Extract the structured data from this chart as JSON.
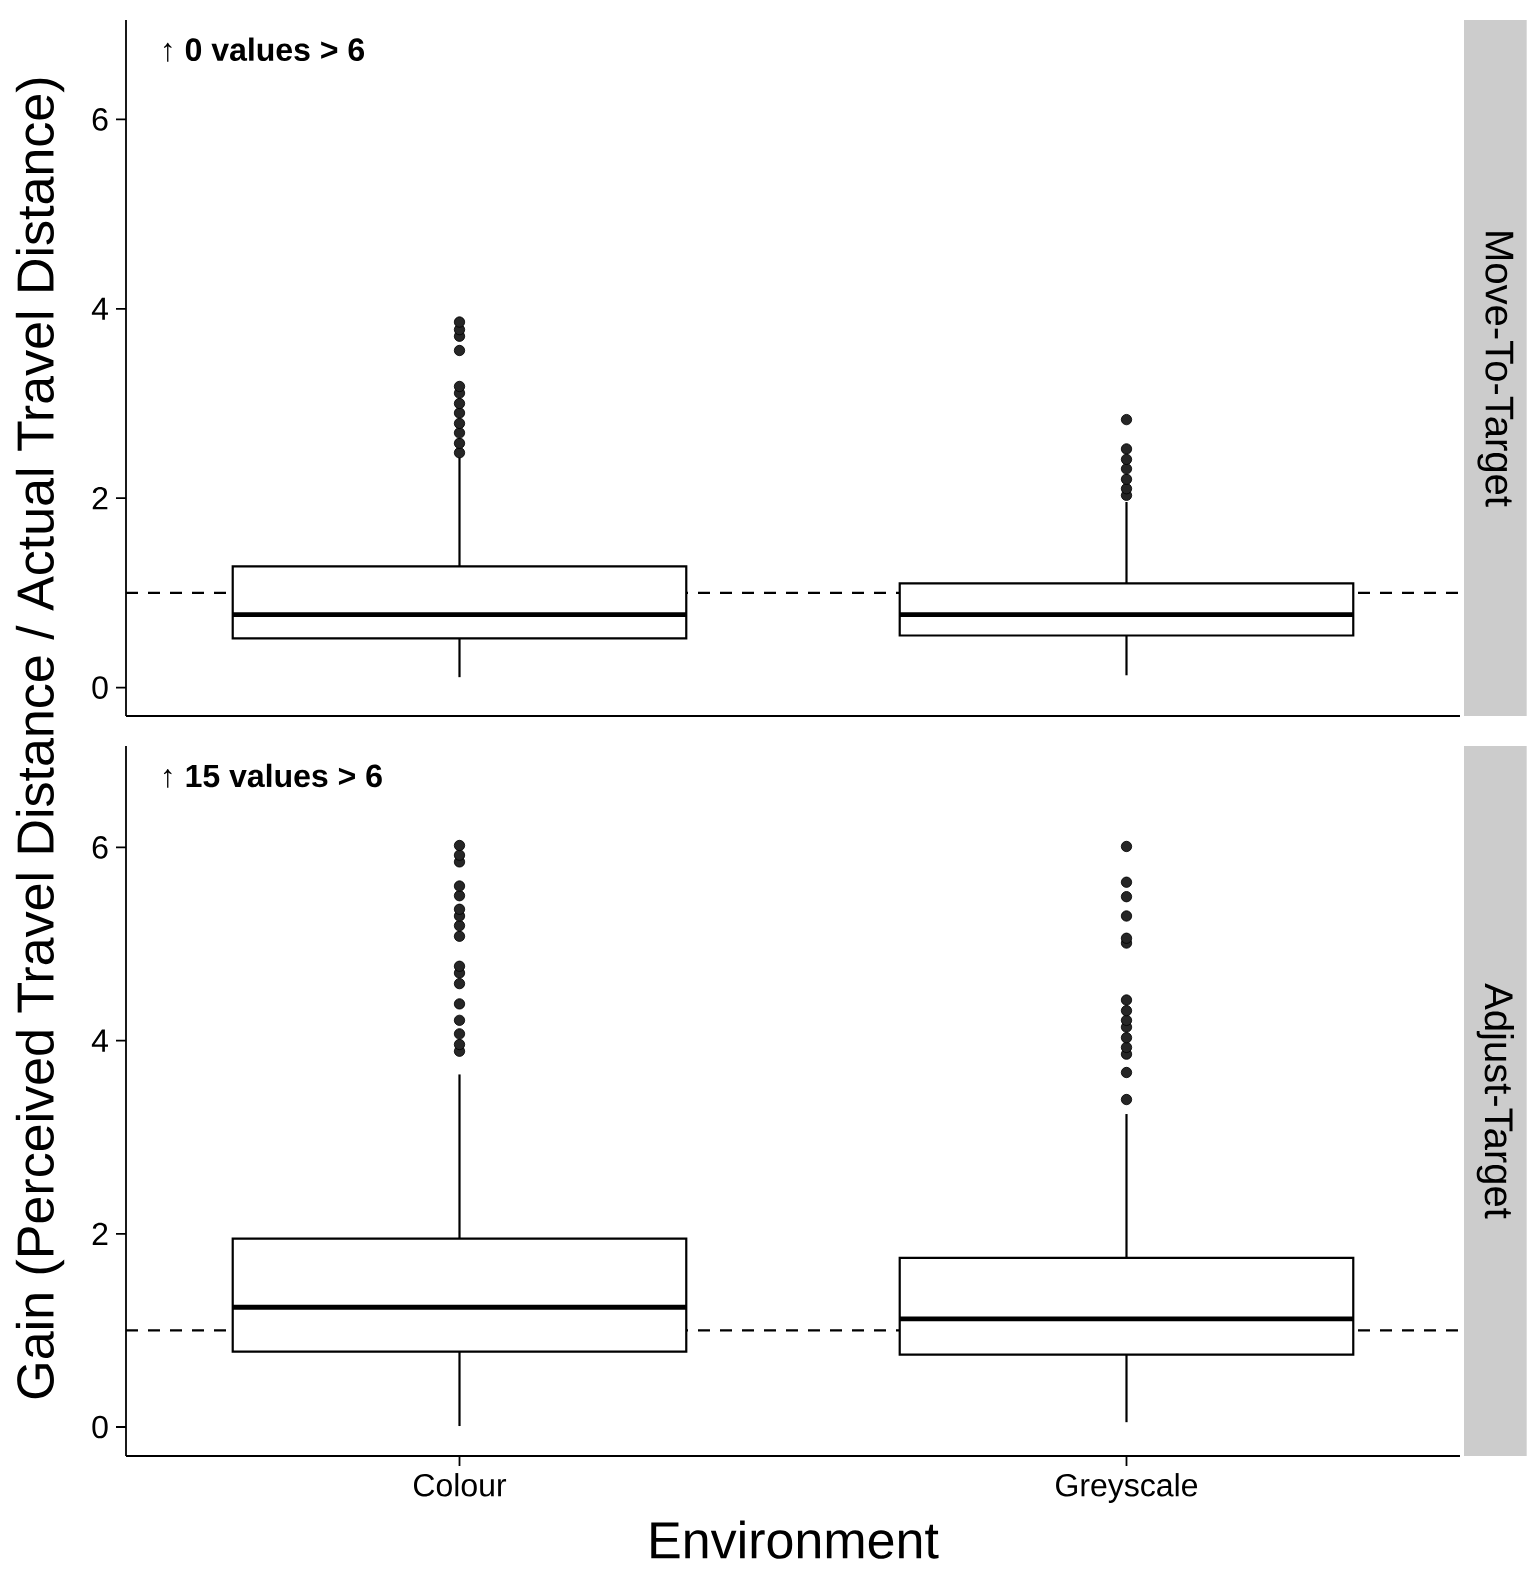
{
  "chart_data": [
    {
      "type": "box",
      "title": "Move-To-Target",
      "categories": [
        null,
        null
      ],
      "ylabel": "Gain (Perceived Travel Distance / Actual Travel Distance)",
      "ylim": [
        -0.3,
        7.05
      ],
      "yticks": [
        0,
        2,
        4,
        6
      ],
      "tick_labels": "y",
      "boxes": [
        {
          "low": 0.11,
          "q1": 0.52,
          "median": 0.77,
          "q3": 1.28,
          "high": 2.45,
          "outliers": [
            2.48,
            2.58,
            2.69,
            2.79,
            2.9,
            3.0,
            3.11,
            3.18,
            3.56,
            3.71,
            3.78,
            3.86
          ]
        },
        {
          "low": 0.13,
          "q1": 0.55,
          "median": 0.77,
          "q3": 1.1,
          "high": 1.96,
          "outliers": [
            2.03,
            2.1,
            2.2,
            2.31,
            2.41,
            2.52,
            2.83
          ]
        }
      ],
      "ref_lines": [
        {
          "axis": "y",
          "value": 1,
          "line_style": "dashed"
        }
      ],
      "annotations": [
        "↑ 0 values > 6"
      ]
    },
    {
      "type": "box",
      "title": "Adjust-Target",
      "categories": [
        "Colour",
        "Greyscale"
      ],
      "xlabel": "Environment",
      "ylim": [
        -0.3,
        7.05
      ],
      "yticks": [
        0,
        2,
        4,
        6
      ],
      "boxes": [
        {
          "low": 0.01,
          "q1": 0.78,
          "median": 1.24,
          "q3": 1.95,
          "high": 3.65,
          "outliers": [
            3.89,
            3.96,
            4.07,
            4.21,
            4.38,
            4.59,
            4.7,
            4.77,
            5.08,
            5.19,
            5.29,
            5.36,
            5.5,
            5.6,
            5.85,
            5.92,
            6.02
          ]
        },
        {
          "low": 0.05,
          "q1": 0.75,
          "median": 1.12,
          "q3": 1.75,
          "high": 3.24,
          "outliers": [
            3.39,
            3.67,
            3.86,
            3.93,
            4.03,
            4.14,
            4.21,
            4.31,
            4.42,
            5.01,
            5.06,
            5.29,
            5.49,
            5.64,
            6.01
          ]
        }
      ],
      "ref_lines": [
        {
          "axis": "y",
          "value": 1,
          "line_style": "dashed"
        }
      ],
      "annotations": [
        "↑ 15 values > 6"
      ]
    }
  ]
}
